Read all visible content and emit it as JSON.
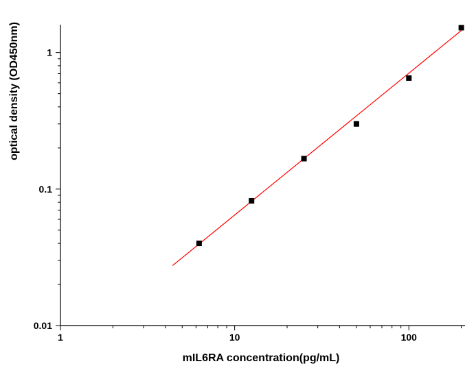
{
  "chart_data": {
    "type": "scatter",
    "title": "",
    "xlabel": "mIL6RA concentration(pg/mL)",
    "ylabel": "optical density (OD450nm)",
    "xscale": "log",
    "yscale": "log",
    "xlim": [
      1,
      210
    ],
    "ylim": [
      0.01,
      1.6
    ],
    "x_ticks": [
      1,
      10,
      100
    ],
    "x_tick_labels": [
      "1",
      "10",
      "100"
    ],
    "y_ticks": [
      0.01,
      0.1,
      1
    ],
    "y_tick_labels": [
      "0.01",
      "0.1",
      "1"
    ],
    "grid": false,
    "legend": "none",
    "series": [
      {
        "marker": "square",
        "color": "#000000",
        "x": [
          6.25,
          12.5,
          25,
          50,
          100,
          200
        ],
        "y": [
          0.04,
          0.082,
          0.167,
          0.3,
          0.65,
          1.52
        ]
      }
    ],
    "fit_line": {
      "color": "#ff0000",
      "x": [
        4.4,
        200
      ],
      "y": [
        0.0275,
        1.45
      ]
    }
  }
}
